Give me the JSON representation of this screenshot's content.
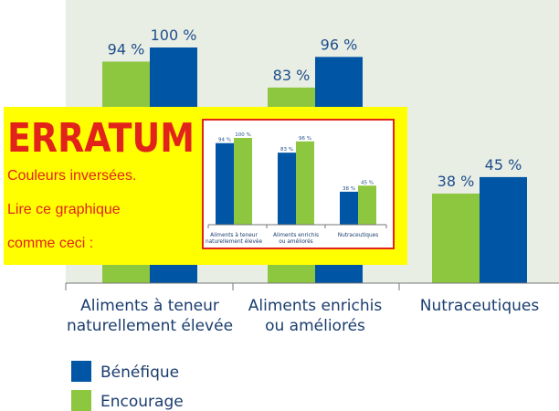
{
  "chart_data": [
    {
      "type": "bar",
      "categories": [
        "Aliments à teneur\nnaturellement élevée",
        "Aliments enrichis\nou améliorés",
        "Nutraceutiques"
      ],
      "series": [
        {
          "name": "Bénéfique",
          "color": "#0055a4",
          "values": [
            100,
            96,
            45
          ],
          "value_labels": [
            "100 %",
            "96 %",
            "45 %"
          ]
        },
        {
          "name": "Encourage",
          "color": "#8dc63f",
          "values": [
            94,
            83,
            38
          ],
          "value_labels": [
            "94 %",
            "83 %",
            "38 %"
          ]
        }
      ],
      "ylim": [
        0,
        100
      ],
      "annotations": {
        "title": "ERRATUM",
        "lines": [
          "Couleurs inversées.",
          "Lire ce graphique",
          "comme ceci :"
        ]
      }
    },
    {
      "type": "bar",
      "categories": [
        "Aliments à teneur\nnaturellement élevée",
        "Aliments enrichis\nou améliorés",
        "Nutraceutiques"
      ],
      "series": [
        {
          "color": "#8dc63f",
          "values": [
            100,
            96,
            45
          ],
          "value_labels": [
            "100 %",
            "96 %",
            "45 %"
          ]
        },
        {
          "color": "#0055a4",
          "values": [
            94,
            83,
            38
          ],
          "value_labels": [
            "94 %",
            "83 %",
            "38 %"
          ]
        }
      ],
      "ylim": [
        0,
        100
      ]
    }
  ]
}
